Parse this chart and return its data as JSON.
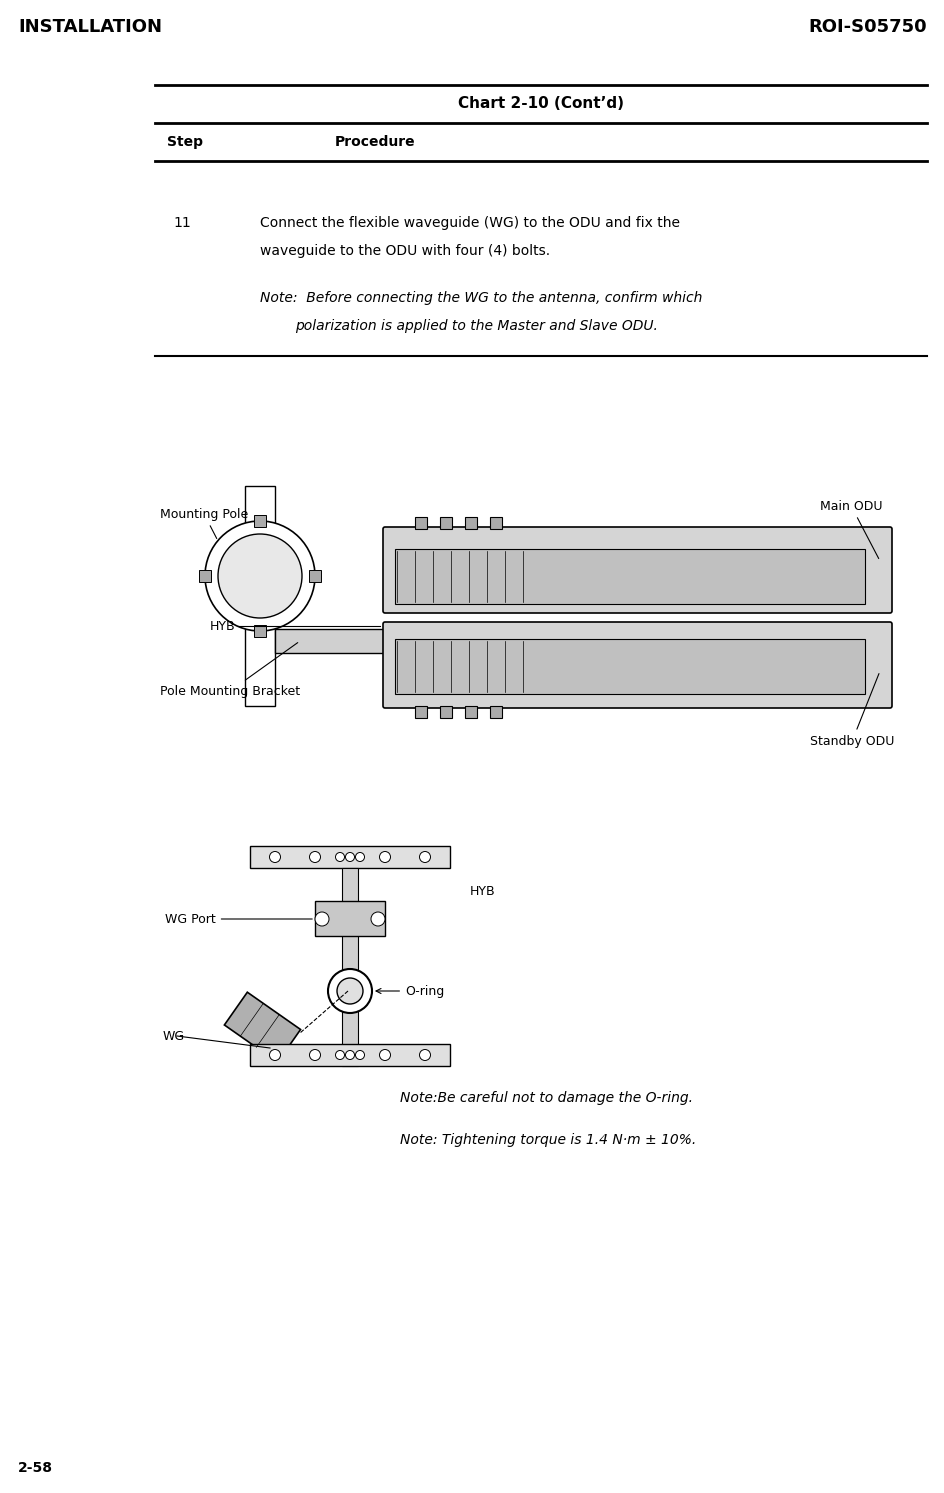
{
  "page_width": 9.45,
  "page_height": 14.93,
  "bg_color": "#ffffff",
  "header_left": "INSTALLATION",
  "header_right": "ROI-S05750",
  "footer_left": "2-58",
  "chart_title": "Chart 2-10 (Cont’d)",
  "col_step": "Step",
  "col_procedure": "Procedure",
  "step_number": "11",
  "step_text_line1": "Connect the flexible waveguide (WG) to the ODU and fix the",
  "step_text_line2": "waveguide to the ODU with four (4) bolts.",
  "note1_line1": "Note:  Before connecting the WG to the antenna, confirm which",
  "note1_line2": "polarization is applied to the Master and Slave ODU.",
  "label_mounting_pole": "Mounting Pole",
  "label_pole_bracket": "Pole Mounting Bracket",
  "label_hyb1": "HYB",
  "label_main_odu": "Main ODU",
  "label_standby_odu": "Standby ODU",
  "label_wg_port": "WG Port",
  "label_hyb2": "HYB",
  "label_o_ring": "O-ring",
  "label_wg": "WG",
  "note2": "Note:Be careful not to damage the O-ring.",
  "note3": "Note: Tightening torque is 1.4 N·m ± 10%.",
  "header_fontsize": 13,
  "title_fontsize": 11,
  "body_fontsize": 10,
  "note_fontsize": 10,
  "label_fontsize": 9
}
